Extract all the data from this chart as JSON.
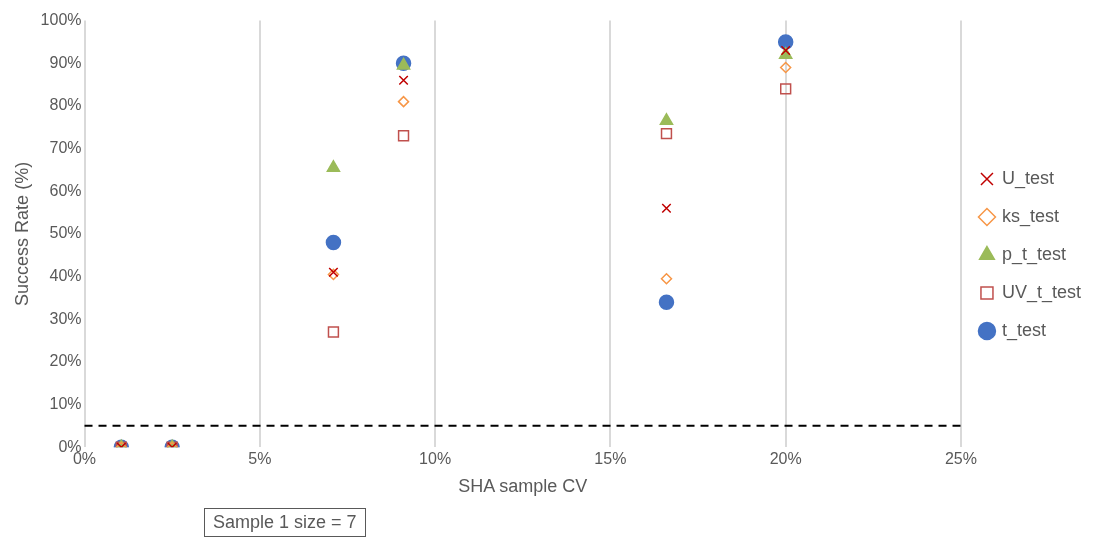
{
  "chart_data": {
    "type": "scatter",
    "xlabel": "SHA sample CV",
    "ylabel": "Success Rate (%)",
    "x": [
      1.05,
      2.5,
      7.1,
      9.1,
      16.6,
      20
    ],
    "series": [
      {
        "name": "t_test",
        "color": "#4472c4",
        "marker": "circle",
        "values": [
          0,
          0,
          48,
          90,
          34,
          95
        ]
      },
      {
        "name": "UV_t_test",
        "color": "#c0504d",
        "marker": "square",
        "values": [
          0,
          0,
          27,
          73,
          73.5,
          84
        ]
      },
      {
        "name": "p_t_test",
        "color": "#9bbb59",
        "marker": "triangle",
        "values": [
          0,
          0,
          65.5,
          89.5,
          76.5,
          92
        ]
      },
      {
        "name": "ks_test",
        "color": "#f79646",
        "marker": "diamond",
        "values": [
          0,
          0,
          40.5,
          81,
          39.5,
          89
        ]
      },
      {
        "name": "U_test",
        "color": "#c00000",
        "marker": "cross",
        "values": [
          0,
          0,
          41,
          86,
          56,
          93
        ]
      }
    ],
    "xlim": [
      0,
      25
    ],
    "xticks": [
      {
        "value": 0,
        "label": "0%"
      },
      {
        "value": 5,
        "label": "5%"
      },
      {
        "value": 10,
        "label": "10%"
      },
      {
        "value": 15,
        "label": "15%"
      },
      {
        "value": 20,
        "label": "20%"
      },
      {
        "value": 25,
        "label": "25%"
      }
    ],
    "ylim": [
      0,
      100
    ],
    "yticks": [
      {
        "value": 0,
        "label": "0%"
      },
      {
        "value": 10,
        "label": "10%"
      },
      {
        "value": 20,
        "label": "20%"
      },
      {
        "value": 30,
        "label": "30%"
      },
      {
        "value": 40,
        "label": "40%"
      },
      {
        "value": 50,
        "label": "50%"
      },
      {
        "value": 60,
        "label": "60%"
      },
      {
        "value": 70,
        "label": "70%"
      },
      {
        "value": 80,
        "label": "80%"
      },
      {
        "value": 90,
        "label": "90%"
      },
      {
        "value": 100,
        "label": "100%"
      }
    ],
    "grid": "x",
    "legend": "right",
    "ref_lines": [
      {
        "axis": "y",
        "value": 5,
        "color": "#000000",
        "line_style": "dashed"
      }
    ],
    "annotations": [
      "Sample 1 size = 7"
    ]
  }
}
